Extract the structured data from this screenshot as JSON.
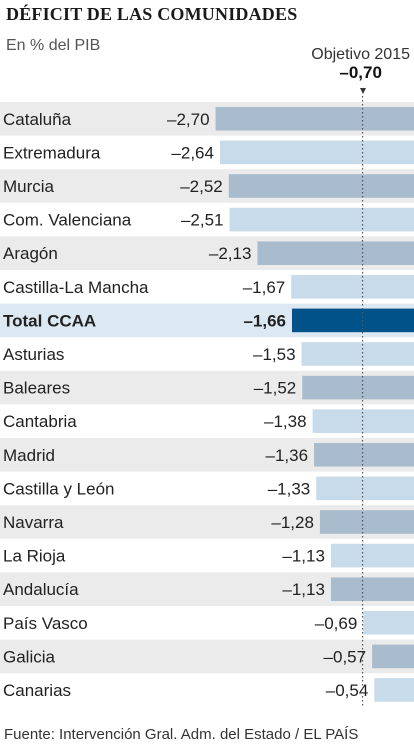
{
  "chart_data": {
    "type": "bar",
    "title": "DÉFICIT DE LAS COMUNIDADES",
    "subtitle": "En % del PIB",
    "target": {
      "label": "Objetivo 2015",
      "value": -0.7,
      "value_label": "–0,70"
    },
    "categories": [
      "Cataluña",
      "Extremadura",
      "Murcia",
      "Com. Valenciana",
      "Aragón",
      "Castilla-La Mancha",
      "Total CCAA",
      "Asturias",
      "Baleares",
      "Cantabria",
      "Madrid",
      "Castilla y León",
      "Navarra",
      "La Rioja",
      "Andalucía",
      "País Vasco",
      "Galicia",
      "Canarias"
    ],
    "values": [
      -2.7,
      -2.64,
      -2.52,
      -2.51,
      -2.13,
      -1.67,
      -1.66,
      -1.53,
      -1.52,
      -1.38,
      -1.36,
      -1.33,
      -1.28,
      -1.13,
      -1.13,
      -0.69,
      -0.57,
      -0.54
    ],
    "value_labels": [
      "–2,70",
      "–2,64",
      "–2,52",
      "–2,51",
      "–2,13",
      "–1,67",
      "–1,66",
      "–1,53",
      "–1,52",
      "–1,38",
      "–1,36",
      "–1,33",
      "–1,28",
      "–1,13",
      "–1,13",
      "–0,69",
      "–0,57",
      "–0,54"
    ],
    "highlight_index": 6,
    "colors": {
      "bar_dark_row": "#a9bccd",
      "bar_light_row": "#c8dbea",
      "bar_highlight": "#005288",
      "row_shade": "#ebebeb",
      "row_highlight": "#dce8f2",
      "target_line": "#555555"
    }
  },
  "source": "Fuente: Intervención Gral. Adm. del Estado / EL PAÍS"
}
